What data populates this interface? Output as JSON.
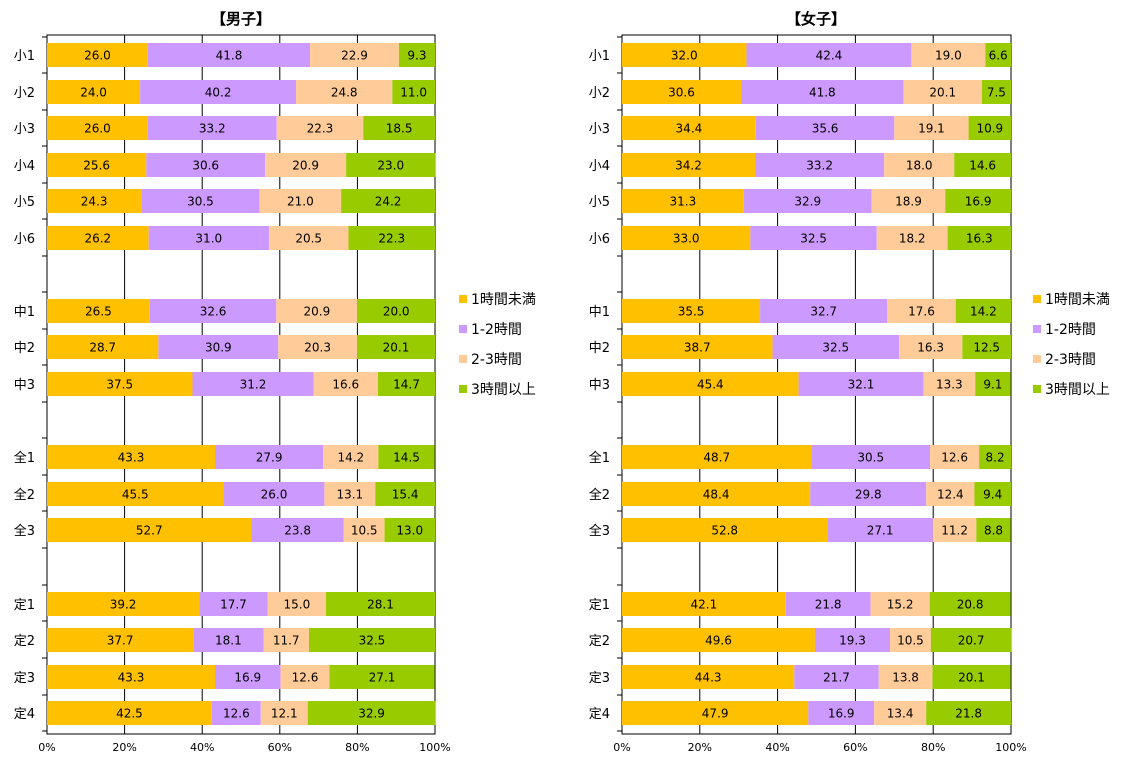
{
  "series_names": [
    "1時間未満",
    "1-2時間",
    "2-3時間",
    "3時間以上"
  ],
  "colors": [
    "#FFC000",
    "#CC99FF",
    "#FFCC99",
    "#99CC00"
  ],
  "x_ticks": [
    "0%",
    "20%",
    "40%",
    "60%",
    "80%",
    "100%"
  ],
  "chart_data": [
    {
      "type": "bar",
      "orientation": "horizontal",
      "stacked": true,
      "title": "【男子】",
      "categories": [
        "小1",
        "小2",
        "小3",
        "小4",
        "小5",
        "小6",
        "中1",
        "中2",
        "中3",
        "全1",
        "全2",
        "全3",
        "定1",
        "定2",
        "定3",
        "定4"
      ],
      "series": [
        {
          "name": "1時間未満",
          "values": [
            26.0,
            24.0,
            26.0,
            25.6,
            24.3,
            26.2,
            26.5,
            28.7,
            37.5,
            43.3,
            45.5,
            52.7,
            39.2,
            37.7,
            43.3,
            42.5
          ]
        },
        {
          "name": "1-2時間",
          "values": [
            41.8,
            40.2,
            33.2,
            30.6,
            30.5,
            31.0,
            32.6,
            30.9,
            31.2,
            27.9,
            26.0,
            23.8,
            17.7,
            18.1,
            16.9,
            12.6
          ]
        },
        {
          "name": "2-3時間",
          "values": [
            22.9,
            24.8,
            22.3,
            20.9,
            21.0,
            20.5,
            20.9,
            20.3,
            16.6,
            14.2,
            13.1,
            10.5,
            15.0,
            11.7,
            12.6,
            12.1
          ]
        },
        {
          "name": "3時間以上",
          "values": [
            9.3,
            11.0,
            18.5,
            23.0,
            24.2,
            22.3,
            20.0,
            20.1,
            14.7,
            14.5,
            15.4,
            13.0,
            28.1,
            32.5,
            27.1,
            32.9
          ]
        }
      ],
      "xlim": [
        0,
        100
      ],
      "grid": "vertical",
      "legend": "right"
    },
    {
      "type": "bar",
      "orientation": "horizontal",
      "stacked": true,
      "title": "【女子】",
      "categories": [
        "小1",
        "小2",
        "小3",
        "小4",
        "小5",
        "小6",
        "中1",
        "中2",
        "中3",
        "全1",
        "全2",
        "全3",
        "定1",
        "定2",
        "定3",
        "定4"
      ],
      "series": [
        {
          "name": "1時間未満",
          "values": [
            32.0,
            30.6,
            34.4,
            34.2,
            31.3,
            33.0,
            35.5,
            38.7,
            45.4,
            48.7,
            48.4,
            52.8,
            42.1,
            49.6,
            44.3,
            47.9
          ]
        },
        {
          "name": "1-2時間",
          "values": [
            42.4,
            41.8,
            35.6,
            33.2,
            32.9,
            32.5,
            32.7,
            32.5,
            32.1,
            30.5,
            29.8,
            27.1,
            21.8,
            19.3,
            21.7,
            16.9
          ]
        },
        {
          "name": "2-3時間",
          "values": [
            19.0,
            20.1,
            19.1,
            18.0,
            18.9,
            18.2,
            17.6,
            16.3,
            13.3,
            12.6,
            12.4,
            11.2,
            15.2,
            10.5,
            13.8,
            13.4
          ]
        },
        {
          "name": "3時間以上",
          "values": [
            6.6,
            7.5,
            10.9,
            14.6,
            16.9,
            16.3,
            14.2,
            12.5,
            9.1,
            8.2,
            9.4,
            8.8,
            20.8,
            20.7,
            20.1,
            21.8
          ]
        }
      ],
      "xlim": [
        0,
        100
      ],
      "grid": "vertical",
      "legend": "right"
    }
  ]
}
